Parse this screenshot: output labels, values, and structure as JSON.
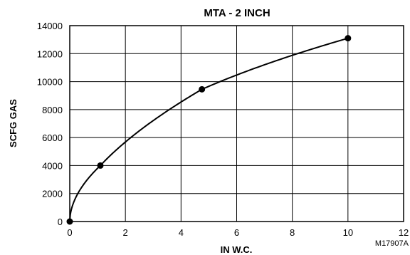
{
  "chart_data": {
    "type": "line",
    "title": "MTA - 2 INCH",
    "xlabel": "IN W.C.",
    "ylabel": "SCFG GAS",
    "xlim": [
      0,
      12
    ],
    "ylim": [
      0,
      14000
    ],
    "x_ticks": [
      0,
      2,
      4,
      6,
      8,
      10,
      12
    ],
    "y_ticks": [
      0,
      2000,
      4000,
      6000,
      8000,
      10000,
      12000,
      14000
    ],
    "grid": true,
    "legend": "none",
    "line_color": "#000000",
    "series": [
      {
        "marker": "filled-circle",
        "x": [
          0,
          1.1,
          4.75,
          10
        ],
        "y": [
          0,
          4000,
          9450,
          13100
        ]
      }
    ],
    "figure_code": "M17907A"
  }
}
